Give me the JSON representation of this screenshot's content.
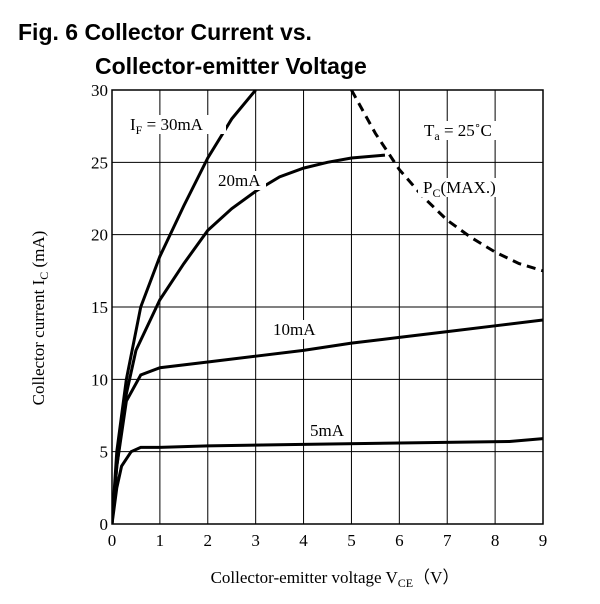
{
  "chart_data": {
    "type": "line",
    "title": [
      "Fig. 6 Collector Current vs.",
      "Collector-emitter Voltage"
    ],
    "xlabel": [
      "Collector-emitter voltage V",
      "CE",
      "（V）"
    ],
    "ylabel": [
      "Collector current I",
      "C",
      " (mA)"
    ],
    "xlim": [
      0,
      9
    ],
    "ylim": [
      0,
      30
    ],
    "xticks": [
      0,
      1,
      2,
      3,
      4,
      5,
      6,
      7,
      8,
      9
    ],
    "yticks": [
      0,
      5,
      10,
      15,
      20,
      25,
      30
    ],
    "grid": true,
    "if_label": [
      "I",
      "F",
      " = "
    ],
    "ta_label": [
      "T",
      "a",
      " = 25˚C"
    ],
    "pc_label": [
      "P",
      "C",
      "(MAX.)"
    ],
    "series": [
      {
        "name": "30mA",
        "color": "#000000",
        "dashed": false,
        "x": [
          0,
          0.1,
          0.3,
          0.6,
          1,
          1.5,
          2,
          2.5,
          3
        ],
        "values": [
          0,
          5,
          10,
          15,
          18.5,
          22,
          25.3,
          28,
          30
        ]
      },
      {
        "name": "20mA",
        "color": "#000000",
        "dashed": false,
        "x": [
          0,
          0.1,
          0.3,
          0.5,
          1,
          1.5,
          2,
          2.5,
          3,
          3.5,
          4,
          4.5,
          5,
          5.7
        ],
        "values": [
          0,
          4,
          9,
          12,
          15.5,
          18,
          20.3,
          21.8,
          23,
          24,
          24.6,
          25,
          25.3,
          25.5
        ]
      },
      {
        "name": "10mA",
        "color": "#000000",
        "dashed": false,
        "x": [
          0,
          0.1,
          0.3,
          0.6,
          1,
          2,
          3,
          4,
          5,
          6,
          7,
          8,
          9
        ],
        "values": [
          0,
          4,
          8.5,
          10.3,
          10.8,
          11.2,
          11.6,
          12,
          12.5,
          12.9,
          13.3,
          13.7,
          14.1
        ]
      },
      {
        "name": "5mA",
        "color": "#000000",
        "dashed": false,
        "x": [
          0,
          0.1,
          0.2,
          0.4,
          0.6,
          1,
          2,
          4,
          6,
          8.3,
          9
        ],
        "values": [
          0,
          2.5,
          4,
          5,
          5.3,
          5.3,
          5.4,
          5.5,
          5.6,
          5.7,
          5.9
        ]
      },
      {
        "color": "#000000",
        "dashed": true,
        "x": [
          5,
          5.5,
          6,
          6.5,
          7,
          7.5,
          8,
          8.5,
          9
        ],
        "values": [
          30,
          27,
          24.5,
          22.6,
          21,
          19.8,
          18.8,
          18,
          17.5
        ]
      }
    ]
  }
}
